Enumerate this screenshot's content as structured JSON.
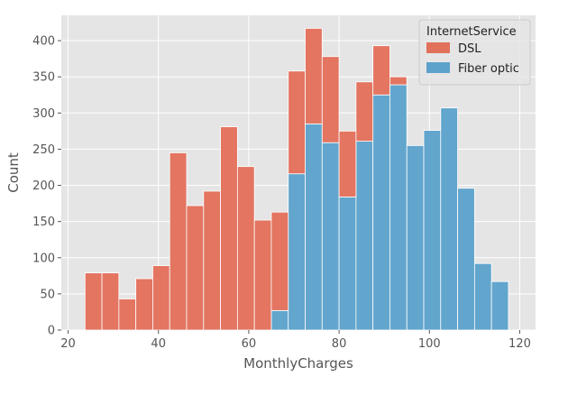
{
  "chart_data": {
    "type": "bar",
    "subtype": "stacked-histogram",
    "xlabel": "MonthlyCharges",
    "ylabel": "Count",
    "xlim": [
      18.5,
      123.5
    ],
    "ylim": [
      0,
      435
    ],
    "xticks": [
      20,
      40,
      60,
      80,
      100,
      120
    ],
    "yticks": [
      0,
      50,
      100,
      150,
      200,
      250,
      300,
      350,
      400
    ],
    "grid": true,
    "legend_position": "top-right",
    "legend_title": "InternetService",
    "bin_edges": [
      23.75,
      27.5,
      31.25,
      35.0,
      38.75,
      42.5,
      46.25,
      50.0,
      53.75,
      57.5,
      61.25,
      65.0,
      68.75,
      72.5,
      76.25,
      80.0,
      83.75,
      87.5,
      91.25,
      95.0,
      98.75,
      102.5,
      106.25,
      110.0,
      113.75,
      117.5,
      121.25
    ],
    "series": [
      {
        "name": "Fiber optic",
        "color": "#5DA2CB",
        "values": [
          0,
          0,
          0,
          0,
          0,
          0,
          0,
          0,
          0,
          0,
          0,
          27,
          216,
          285,
          259,
          184,
          261,
          325,
          339,
          255,
          276,
          307,
          196,
          92,
          67,
          0
        ]
      },
      {
        "name": "DSL",
        "color": "#E2715C",
        "values": [
          79,
          79,
          43,
          71,
          89,
          245,
          172,
          192,
          281,
          226,
          152,
          136,
          142,
          132,
          119,
          91,
          82,
          68,
          11,
          0,
          0,
          0,
          0,
          0,
          0,
          0
        ]
      }
    ]
  }
}
